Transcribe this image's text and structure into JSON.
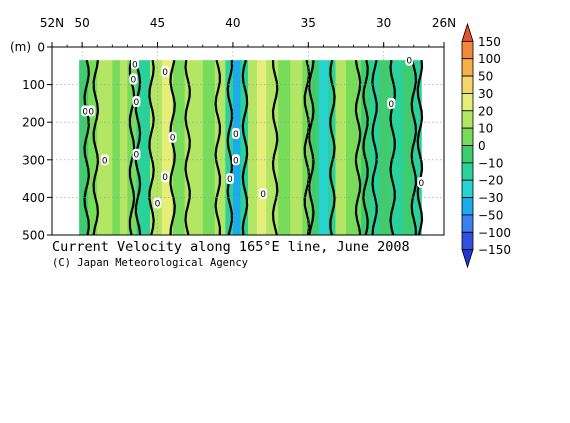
{
  "chart_data": {
    "type": "heatmap",
    "title": "Current Velocity along 165°E line, June 2008",
    "credit": "(C) Japan Meteorological Agency",
    "x_axis": {
      "direction": "reversed",
      "range": [
        52,
        26
      ],
      "ticks": [
        {
          "value": 52,
          "label": "52N"
        },
        {
          "value": 50,
          "label": "50"
        },
        {
          "value": 45,
          "label": "45"
        },
        {
          "value": 40,
          "label": "40"
        },
        {
          "value": 35,
          "label": "35"
        },
        {
          "value": 30,
          "label": "30"
        },
        {
          "value": 26,
          "label": "26N"
        }
      ]
    },
    "y_axis": {
      "unit_label": "(m)",
      "range": [
        0,
        500
      ],
      "inverted": true,
      "ticks": [
        0,
        100,
        200,
        300,
        400,
        500
      ]
    },
    "data_extent": {
      "lat_north": 50.2,
      "lat_south": 27.5,
      "depth_top": 35,
      "depth_bottom": 500
    },
    "grid": true,
    "colorbar": {
      "levels": [
        150,
        100,
        50,
        30,
        20,
        10,
        0,
        -10,
        -20,
        -30,
        -50,
        -100,
        -150
      ],
      "colors": [
        "#e4542e",
        "#f08a3a",
        "#f5b04a",
        "#f5d66a",
        "#e6ee7a",
        "#b4e666",
        "#78dc5a",
        "#3ecc6e",
        "#2ad29a",
        "#27d4cf",
        "#1aabeb",
        "#3d7ef0",
        "#3050e0",
        "#2038d0"
      ]
    },
    "bands": [
      {
        "lat_from": 50.2,
        "lat_to": 49.6,
        "value": -8
      },
      {
        "lat_from": 49.6,
        "lat_to": 49.0,
        "value": 8
      },
      {
        "lat_from": 49.0,
        "lat_to": 48.0,
        "value": 14
      },
      {
        "lat_from": 48.0,
        "lat_to": 47.5,
        "value": 5
      },
      {
        "lat_from": 47.5,
        "lat_to": 47.0,
        "value": 15
      },
      {
        "lat_from": 47.0,
        "lat_to": 46.4,
        "value": 6
      },
      {
        "lat_from": 46.4,
        "lat_to": 45.5,
        "value": -12
      },
      {
        "lat_from": 45.5,
        "lat_to": 44.7,
        "value": 12
      },
      {
        "lat_from": 44.7,
        "lat_to": 44.0,
        "value": 22
      },
      {
        "lat_from": 44.0,
        "lat_to": 43.2,
        "value": 8
      },
      {
        "lat_from": 43.2,
        "lat_to": 42.0,
        "value": 14
      },
      {
        "lat_from": 42.0,
        "lat_to": 41.2,
        "value": 5
      },
      {
        "lat_from": 41.2,
        "lat_to": 40.5,
        "value": 12
      },
      {
        "lat_from": 40.5,
        "lat_to": 40.0,
        "value": -15
      },
      {
        "lat_from": 40.0,
        "lat_to": 39.5,
        "value": -35
      },
      {
        "lat_from": 39.5,
        "lat_to": 39.0,
        "value": -12
      },
      {
        "lat_from": 39.0,
        "lat_to": 38.4,
        "value": 15
      },
      {
        "lat_from": 38.4,
        "lat_to": 37.8,
        "value": 26
      },
      {
        "lat_from": 37.8,
        "lat_to": 37.0,
        "value": 12
      },
      {
        "lat_from": 37.0,
        "lat_to": 36.2,
        "value": 6
      },
      {
        "lat_from": 36.2,
        "lat_to": 35.4,
        "value": 18
      },
      {
        "lat_from": 35.4,
        "lat_to": 34.8,
        "value": 8
      },
      {
        "lat_from": 34.8,
        "lat_to": 34.3,
        "value": -5
      },
      {
        "lat_from": 34.3,
        "lat_to": 33.7,
        "value": -22
      },
      {
        "lat_from": 33.7,
        "lat_to": 33.2,
        "value": -15
      },
      {
        "lat_from": 33.2,
        "lat_to": 32.5,
        "value": 12
      },
      {
        "lat_from": 32.5,
        "lat_to": 31.5,
        "value": 6
      },
      {
        "lat_from": 31.5,
        "lat_to": 30.9,
        "value": -8
      },
      {
        "lat_from": 30.9,
        "lat_to": 30.3,
        "value": -18
      },
      {
        "lat_from": 30.3,
        "lat_to": 29.5,
        "value": -8
      },
      {
        "lat_from": 29.5,
        "lat_to": 28.7,
        "value": -15
      },
      {
        "lat_from": 28.7,
        "lat_to": 28.1,
        "value": -5
      },
      {
        "lat_from": 28.1,
        "lat_to": 27.5,
        "value": -20
      }
    ],
    "zero_contours": [
      49.7,
      49.1,
      46.7,
      46.3,
      45.4,
      44.0,
      43.0,
      41.0,
      40.2,
      39.2,
      37.2,
      35.1,
      34.8,
      33.4,
      31.7,
      31.2,
      30.6,
      29.4,
      28.0,
      27.6
    ],
    "contour_labels": [
      {
        "lat": 49.8,
        "depth": 170,
        "text": "0"
      },
      {
        "lat": 49.4,
        "depth": 170,
        "text": "0"
      },
      {
        "lat": 48.5,
        "depth": 300,
        "text": "0"
      },
      {
        "lat": 46.5,
        "depth": 45,
        "text": "0"
      },
      {
        "lat": 46.6,
        "depth": 85,
        "text": "0"
      },
      {
        "lat": 46.4,
        "depth": 145,
        "text": "0"
      },
      {
        "lat": 46.4,
        "depth": 285,
        "text": "0"
      },
      {
        "lat": 44.5,
        "depth": 65,
        "text": "0"
      },
      {
        "lat": 44.0,
        "depth": 240,
        "text": "0"
      },
      {
        "lat": 44.5,
        "depth": 345,
        "text": "0"
      },
      {
        "lat": 45.0,
        "depth": 415,
        "text": "0"
      },
      {
        "lat": 39.8,
        "depth": 230,
        "text": "0"
      },
      {
        "lat": 39.8,
        "depth": 300,
        "text": "0"
      },
      {
        "lat": 40.2,
        "depth": 350,
        "text": "0"
      },
      {
        "lat": 38.0,
        "depth": 390,
        "text": "0"
      },
      {
        "lat": 29.5,
        "depth": 150,
        "text": "0"
      },
      {
        "lat": 28.3,
        "depth": 35,
        "text": "0"
      },
      {
        "lat": 27.5,
        "depth": 360,
        "text": "0"
      }
    ]
  }
}
